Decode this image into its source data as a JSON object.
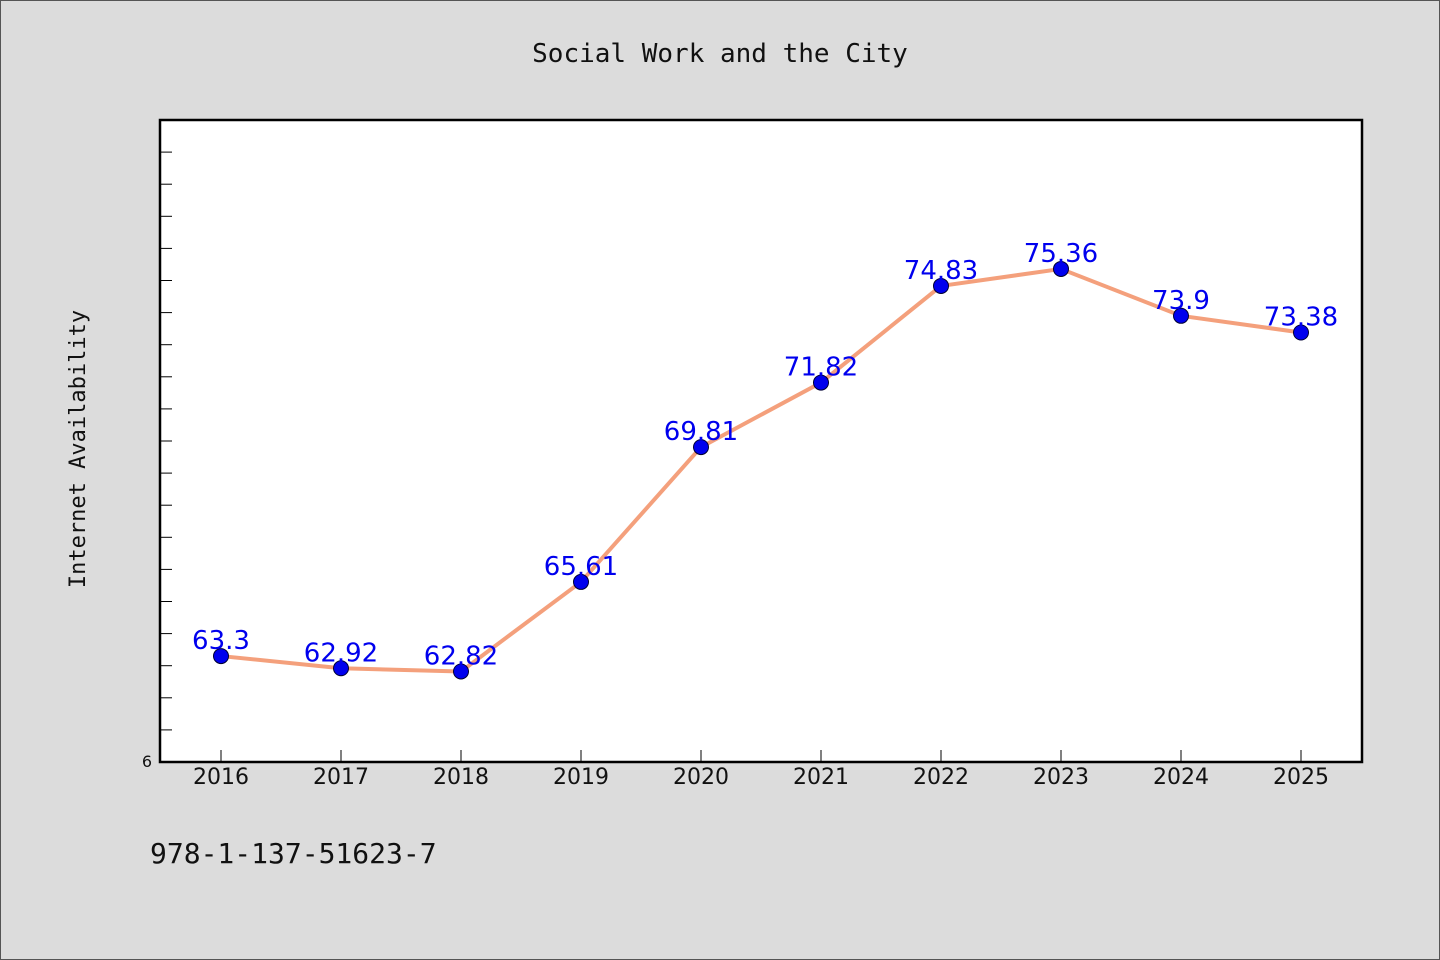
{
  "chart_data": {
    "type": "line",
    "title": "Social Work and the City",
    "ylabel": "Internet Availability",
    "xlabel": "",
    "categories": [
      "2016",
      "2017",
      "2018",
      "2019",
      "2020",
      "2021",
      "2022",
      "2023",
      "2024",
      "2025"
    ],
    "series": [
      {
        "values": [
          63.3,
          62.92,
          62.82,
          65.61,
          69.81,
          71.82,
          74.83,
          75.36,
          73.9,
          73.38
        ],
        "labels": [
          "63.3",
          "62.92",
          "62.82",
          "65.61",
          "69.81",
          "71.82",
          "74.83",
          "75.36",
          "73.9",
          "73.38"
        ],
        "line_color": "#f4a07c",
        "marker_color": "#0000ee"
      }
    ],
    "ylim": [
      60,
      80
    ],
    "ytick_visible_label": "6",
    "grid": false,
    "legend": "none"
  },
  "footer": {
    "isbn": "978-1-137-51623-7"
  },
  "colors": {
    "background": "#dcdcdc",
    "plot_background": "#ffffff",
    "line": "#f4a07c",
    "marker": "#0000ee",
    "label": "#0000ee"
  }
}
